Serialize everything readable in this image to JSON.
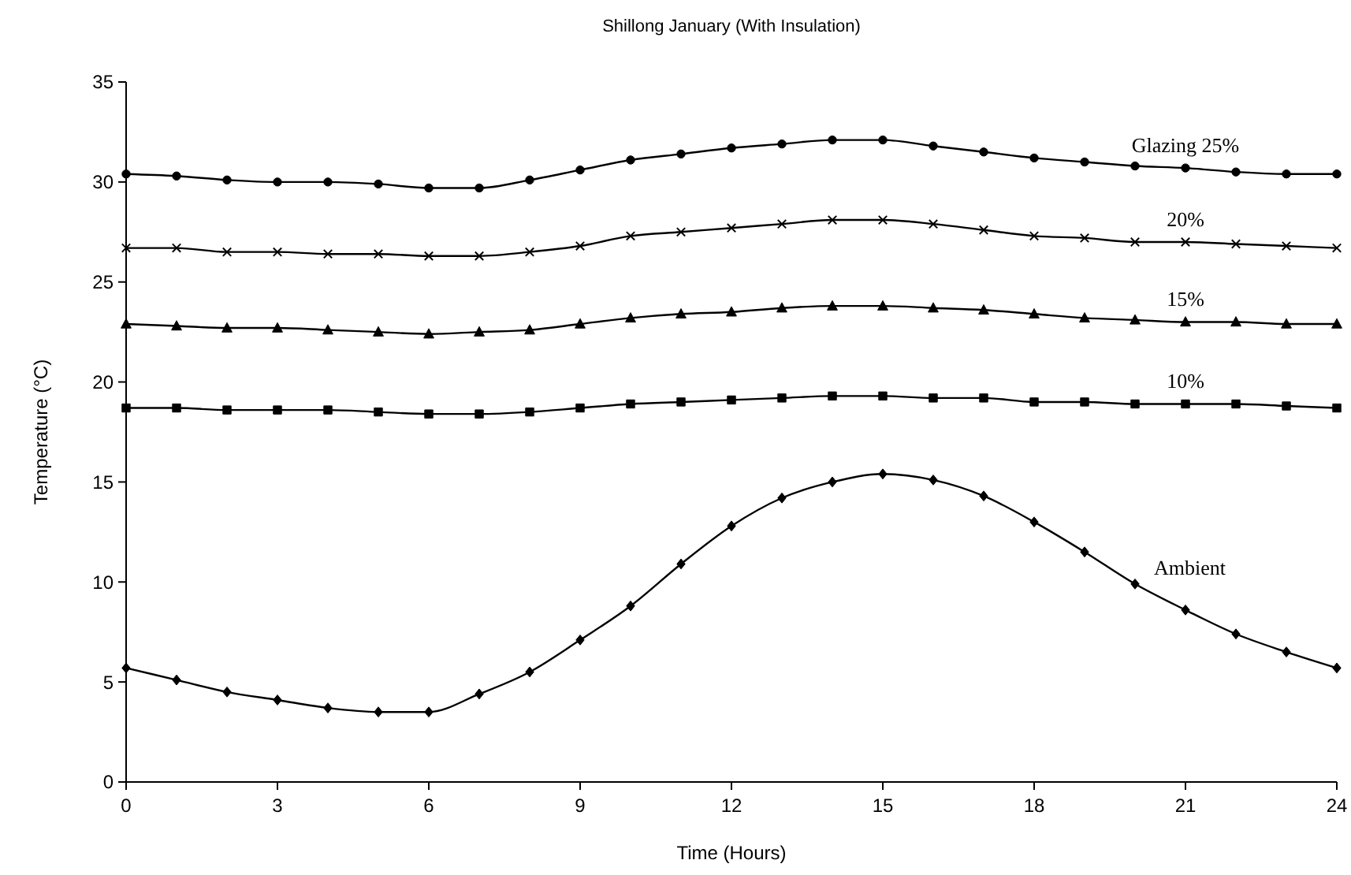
{
  "chart_data": {
    "type": "line",
    "title": "Shillong  January (With Insulation)",
    "xlabel": "Time (Hours)",
    "ylabel": "Temperature (°C)",
    "x": [
      0,
      1,
      2,
      3,
      4,
      5,
      6,
      7,
      8,
      9,
      10,
      11,
      12,
      13,
      14,
      15,
      16,
      17,
      18,
      19,
      20,
      21,
      22,
      23,
      24
    ],
    "xlim": [
      0,
      24
    ],
    "xticks": [
      0,
      3,
      6,
      9,
      12,
      15,
      18,
      21,
      24
    ],
    "ylim": [
      0,
      35
    ],
    "yticks": [
      0,
      5,
      10,
      15,
      20,
      25,
      30,
      35
    ],
    "grid": false,
    "series": [
      {
        "name": "Glazing 25%",
        "color": "#000000",
        "marker": "circle",
        "values": [
          30.4,
          30.3,
          30.1,
          30.0,
          30.0,
          29.9,
          29.7,
          29.7,
          30.1,
          30.6,
          31.1,
          31.4,
          31.7,
          31.9,
          32.1,
          32.1,
          31.8,
          31.5,
          31.2,
          31.0,
          30.8,
          30.7,
          30.5,
          30.4,
          30.4
        ]
      },
      {
        "name": "20%",
        "color": "#000000",
        "marker": "cross",
        "values": [
          26.7,
          26.7,
          26.5,
          26.5,
          26.4,
          26.4,
          26.3,
          26.3,
          26.5,
          26.8,
          27.3,
          27.5,
          27.7,
          27.9,
          28.1,
          28.1,
          27.9,
          27.6,
          27.3,
          27.2,
          27.0,
          27.0,
          26.9,
          26.8,
          26.7
        ]
      },
      {
        "name": "15%",
        "color": "#000000",
        "marker": "triangle",
        "values": [
          22.9,
          22.8,
          22.7,
          22.7,
          22.6,
          22.5,
          22.4,
          22.5,
          22.6,
          22.9,
          23.2,
          23.4,
          23.5,
          23.7,
          23.8,
          23.8,
          23.7,
          23.6,
          23.4,
          23.2,
          23.1,
          23.0,
          23.0,
          22.9,
          22.9
        ]
      },
      {
        "name": "10%",
        "color": "#000000",
        "marker": "square",
        "values": [
          18.7,
          18.7,
          18.6,
          18.6,
          18.6,
          18.5,
          18.4,
          18.4,
          18.5,
          18.7,
          18.9,
          19.0,
          19.1,
          19.2,
          19.3,
          19.3,
          19.2,
          19.2,
          19.0,
          19.0,
          18.9,
          18.9,
          18.9,
          18.8,
          18.7
        ]
      },
      {
        "name": "Ambient",
        "color": "#000000",
        "marker": "diamond",
        "values": [
          5.7,
          5.1,
          4.5,
          4.1,
          3.7,
          3.5,
          3.5,
          4.4,
          5.5,
          7.1,
          8.8,
          10.9,
          12.8,
          14.2,
          15.0,
          15.4,
          15.1,
          14.3,
          13.0,
          11.5,
          9.9,
          8.6,
          7.4,
          6.5,
          5.7
        ]
      }
    ]
  }
}
